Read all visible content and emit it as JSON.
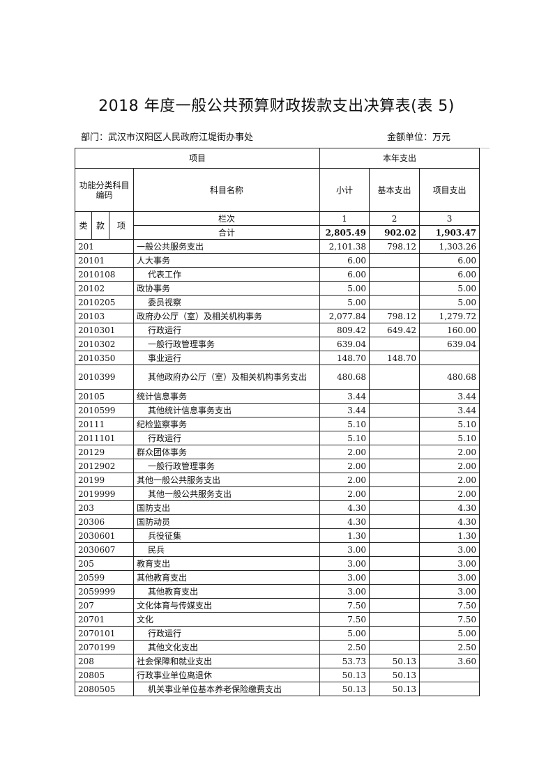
{
  "title": "2018 年度一般公共预算财政拨款支出决算表(表 5)",
  "department": "部门：武汉市汉阳区人民政府江堤街办事处",
  "unit": "金额单位：万元",
  "header": {
    "project": "项目",
    "current_year_expense": "本年支出",
    "func_code": "功能分类科目编码",
    "subject_name": "科目名称",
    "subtotal": "小计",
    "basic": "基本支出",
    "project_expense": "项目支出",
    "lei": "类",
    "kuan": "款",
    "xiang": "项",
    "column_index": "栏次",
    "col1": "1",
    "col2": "2",
    "col3": "3",
    "total_label": "合计",
    "total_subtotal": "2,805.49",
    "total_basic": "902.02",
    "total_project": "1,903.47"
  },
  "rows": [
    {
      "code": "201",
      "name": "一般公共服务支出",
      "indent": false,
      "subtotal": "2,101.38",
      "basic": "798.12",
      "project": "1,303.26"
    },
    {
      "code": "20101",
      "name": "人大事务",
      "indent": false,
      "subtotal": "6.00",
      "basic": "",
      "project": "6.00"
    },
    {
      "code": "2010108",
      "name": "代表工作",
      "indent": true,
      "subtotal": "6.00",
      "basic": "",
      "project": "6.00"
    },
    {
      "code": "20102",
      "name": "政协事务",
      "indent": false,
      "subtotal": "5.00",
      "basic": "",
      "project": "5.00"
    },
    {
      "code": "2010205",
      "name": "委员视察",
      "indent": true,
      "subtotal": "5.00",
      "basic": "",
      "project": "5.00"
    },
    {
      "code": "20103",
      "name": "政府办公厅（室）及相关机构事务",
      "indent": false,
      "subtotal": "2,077.84",
      "basic": "798.12",
      "project": "1,279.72"
    },
    {
      "code": "2010301",
      "name": "行政运行",
      "indent": true,
      "subtotal": "809.42",
      "basic": "649.42",
      "project": "160.00"
    },
    {
      "code": "2010302",
      "name": "一般行政管理事务",
      "indent": true,
      "subtotal": "639.04",
      "basic": "",
      "project": "639.04"
    },
    {
      "code": "2010350",
      "name": "事业运行",
      "indent": true,
      "subtotal": "148.70",
      "basic": "148.70",
      "project": ""
    },
    {
      "code": "2010399",
      "name": "其他政府办公厅（室）及相关机构事务支出",
      "indent": true,
      "subtotal": "480.68",
      "basic": "",
      "project": "480.68",
      "tall": true
    },
    {
      "code": "20105",
      "name": "统计信息事务",
      "indent": false,
      "subtotal": "3.44",
      "basic": "",
      "project": "3.44"
    },
    {
      "code": "2010599",
      "name": "其他统计信息事务支出",
      "indent": true,
      "subtotal": "3.44",
      "basic": "",
      "project": "3.44"
    },
    {
      "code": "20111",
      "name": "纪检监察事务",
      "indent": false,
      "subtotal": "5.10",
      "basic": "",
      "project": "5.10"
    },
    {
      "code": "2011101",
      "name": "行政运行",
      "indent": true,
      "subtotal": "5.10",
      "basic": "",
      "project": "5.10"
    },
    {
      "code": "20129",
      "name": "群众团体事务",
      "indent": false,
      "subtotal": "2.00",
      "basic": "",
      "project": "2.00"
    },
    {
      "code": "2012902",
      "name": "一般行政管理事务",
      "indent": true,
      "subtotal": "2.00",
      "basic": "",
      "project": "2.00"
    },
    {
      "code": "20199",
      "name": "其他一般公共服务支出",
      "indent": false,
      "subtotal": "2.00",
      "basic": "",
      "project": "2.00"
    },
    {
      "code": "2019999",
      "name": "其他一般公共服务支出",
      "indent": true,
      "subtotal": "2.00",
      "basic": "",
      "project": "2.00"
    },
    {
      "code": "203",
      "name": "国防支出",
      "indent": false,
      "subtotal": "4.30",
      "basic": "",
      "project": "4.30"
    },
    {
      "code": "20306",
      "name": "国防动员",
      "indent": false,
      "subtotal": "4.30",
      "basic": "",
      "project": "4.30"
    },
    {
      "code": "2030601",
      "name": "兵役征集",
      "indent": true,
      "subtotal": "1.30",
      "basic": "",
      "project": "1.30"
    },
    {
      "code": "2030607",
      "name": "民兵",
      "indent": true,
      "subtotal": "3.00",
      "basic": "",
      "project": "3.00"
    },
    {
      "code": "205",
      "name": "教育支出",
      "indent": false,
      "subtotal": "3.00",
      "basic": "",
      "project": "3.00"
    },
    {
      "code": "20599",
      "name": "其他教育支出",
      "indent": false,
      "subtotal": "3.00",
      "basic": "",
      "project": "3.00"
    },
    {
      "code": "2059999",
      "name": "其他教育支出",
      "indent": true,
      "subtotal": "3.00",
      "basic": "",
      "project": "3.00"
    },
    {
      "code": "207",
      "name": "文化体育与传媒支出",
      "indent": false,
      "subtotal": "7.50",
      "basic": "",
      "project": "7.50"
    },
    {
      "code": "20701",
      "name": "文化",
      "indent": false,
      "subtotal": "7.50",
      "basic": "",
      "project": "7.50"
    },
    {
      "code": "2070101",
      "name": "行政运行",
      "indent": true,
      "subtotal": "5.00",
      "basic": "",
      "project": "5.00"
    },
    {
      "code": "2070199",
      "name": "其他文化支出",
      "indent": true,
      "subtotal": "2.50",
      "basic": "",
      "project": "2.50"
    },
    {
      "code": "208",
      "name": "社会保障和就业支出",
      "indent": false,
      "subtotal": "53.73",
      "basic": "50.13",
      "project": "3.60"
    },
    {
      "code": "20805",
      "name": "行政事业单位离退休",
      "indent": false,
      "subtotal": "50.13",
      "basic": "50.13",
      "project": ""
    },
    {
      "code": "2080505",
      "name": "机关事业单位基本养老保险缴费支出",
      "indent": true,
      "subtotal": "50.13",
      "basic": "50.13",
      "project": ""
    }
  ]
}
